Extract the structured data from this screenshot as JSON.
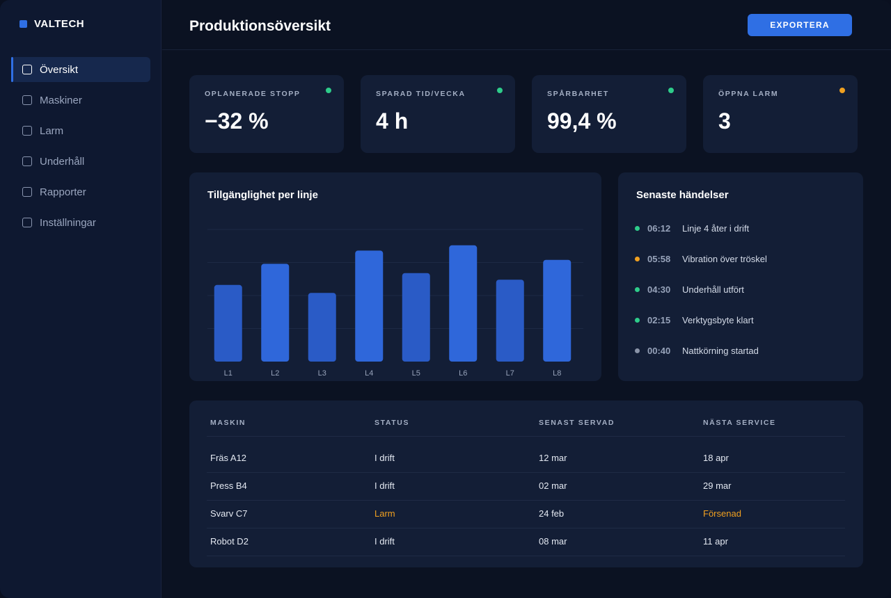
{
  "brand": {
    "name": "VALTECH"
  },
  "sidebar": {
    "items": [
      {
        "label": "Översikt",
        "active": true
      },
      {
        "label": "Maskiner"
      },
      {
        "label": "Larm"
      },
      {
        "label": "Underhåll"
      },
      {
        "label": "Rapporter"
      },
      {
        "label": "Inställningar"
      }
    ]
  },
  "header": {
    "title": "Produktionsöversikt",
    "export_label": "EXPORTERA"
  },
  "kpis": [
    {
      "label": "OPLANERADE STOPP",
      "value": "−32 %",
      "dot_color": "#2ecc8a"
    },
    {
      "label": "SPARAD TID/VECKA",
      "value": "4 h",
      "dot_color": "#2ecc8a"
    },
    {
      "label": "SPÅRBARHET",
      "value": "99,4 %",
      "dot_color": "#2ecc8a"
    },
    {
      "label": "ÖPPNA LARM",
      "value": "3",
      "dot_color": "#f0a020"
    }
  ],
  "chart_panel": {
    "title": "Tillgänglighet per linje"
  },
  "chart_data": {
    "type": "bar",
    "categories": [
      "L1",
      "L2",
      "L3",
      "L4",
      "L5",
      "L6",
      "L7",
      "L8"
    ],
    "values": [
      58,
      74,
      52,
      84,
      67,
      88,
      62,
      77
    ],
    "ylim": [
      0,
      100
    ],
    "grid": true,
    "bar_colors": [
      "#2a5bc6",
      "#2f67da",
      "#2a5bc6",
      "#2f67da",
      "#2a5bc6",
      "#2f67da",
      "#2a5bc6",
      "#2f67da"
    ]
  },
  "events_panel": {
    "title": "Senaste händelser",
    "items": [
      {
        "time": "06:12",
        "text": "Linje 4 åter i drift",
        "color": "#2ecc8a"
      },
      {
        "time": "05:58",
        "text": "Vibration över tröskel",
        "color": "#f0a020"
      },
      {
        "time": "04:30",
        "text": "Underhåll utfört",
        "color": "#2ecc8a"
      },
      {
        "time": "02:15",
        "text": "Verktygsbyte klart",
        "color": "#2ecc8a"
      },
      {
        "time": "00:40",
        "text": "Nattkörning startad",
        "color": "#8a94a8"
      }
    ]
  },
  "table": {
    "headers": [
      "MASKIN",
      "STATUS",
      "SENAST SERVAD",
      "NÄSTA SERVICE"
    ],
    "rows": [
      {
        "machine": "Fräs A12",
        "status": "I drift",
        "last": "12 mar",
        "next": "18 apr"
      },
      {
        "machine": "Press B4",
        "status": "I drift",
        "last": "02 mar",
        "next": "29 mar"
      },
      {
        "machine": "Svarv C7",
        "status": "Larm",
        "last": "24 feb",
        "next": "Försenad"
      },
      {
        "machine": "Robot D2",
        "status": "I drift",
        "last": "08 mar",
        "next": "11 apr"
      }
    ],
    "warn_color": "#f0a020"
  }
}
